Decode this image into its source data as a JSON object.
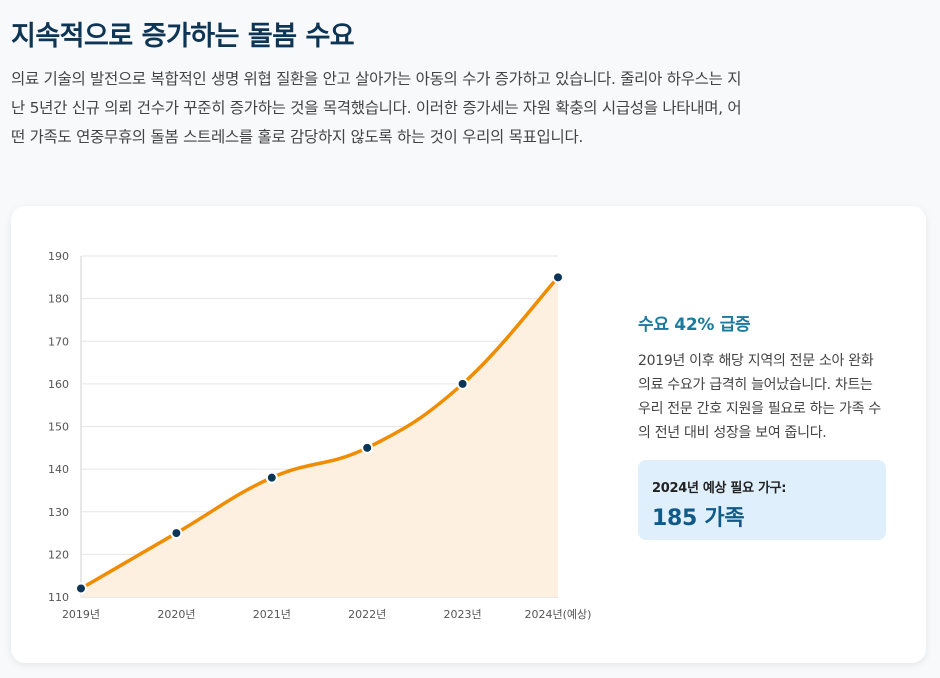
{
  "header": {
    "title": "지속적으로 증가하는 돌봄 수요",
    "intro": "의료 기술의 발전으로 복합적인 생명 위협 질환을 안고 살아가는 아동의 수가 증가하고 있습니다. 줄리아 하우스는 지난 5년간 신규 의뢰 건수가 꾸준히 증가하는 것을 목격했습니다. 이러한 증가세는 자원 확충의 시급성을 나타내며, 어떤 가족도 연중무휴의 돌봄 스트레스를 홀로 감당하지 않도록 하는 것이 우리의 목표입니다."
  },
  "side": {
    "heading": "수요 42% 급증",
    "text": "2019년 이후 해당 지역의 전문 소아 완화 의료 수요가 급격히 늘어났습니다. 차트는 우리 전문 간호 지원을 필요로 하는 가족 수의 전년 대비 성장을 보여 줍니다.",
    "stat_label": "2024년 예상 필요 가구:",
    "stat_value": "185 가족"
  },
  "chart_data": {
    "type": "area",
    "categories": [
      "2019년",
      "2020년",
      "2021년",
      "2022년",
      "2023년",
      "2024년(예상)"
    ],
    "values": [
      112,
      125,
      138,
      145,
      160,
      185
    ],
    "ylim": [
      110,
      190
    ],
    "yticks": [
      110,
      120,
      130,
      140,
      150,
      160,
      170,
      180,
      190
    ],
    "grid": true,
    "colors": {
      "line": "#f08c00",
      "fill": "#fdf0e0",
      "point": "#0d3558",
      "grid": "#e6e6e6"
    }
  }
}
